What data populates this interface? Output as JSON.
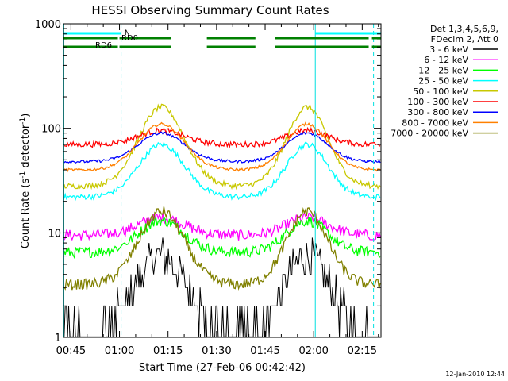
{
  "chart_data": {
    "type": "line",
    "title": "HESSI Observing Summary Count Rates",
    "xlabel": "Start Time (27-Feb-06 00:42:42)",
    "ylabel_prefix": "Count Rate (s",
    "ylabel_sup1": "-1",
    "ylabel_mid": " detector",
    "ylabel_sup2": "-1",
    "ylabel_suffix": ")",
    "y_scale": "log",
    "ylim": [
      1,
      1000
    ],
    "xlim_min": [
      42.7,
      140.8
    ],
    "x_ticks": [
      {
        "m": 45,
        "label": "00:45"
      },
      {
        "m": 60,
        "label": "01:00"
      },
      {
        "m": 75,
        "label": "01:15"
      },
      {
        "m": 90,
        "label": "01:30"
      },
      {
        "m": 105,
        "label": "01:45"
      },
      {
        "m": 120,
        "label": "02:00"
      },
      {
        "m": 135,
        "label": "02:15"
      }
    ],
    "y_ticks": [
      {
        "v": 1,
        "label": "1"
      },
      {
        "v": 10,
        "label": "10"
      },
      {
        "v": 100,
        "label": "100"
      },
      {
        "v": 1000,
        "label": "1000"
      }
    ],
    "legend_header": [
      "Det 1,3,4,5,6,9,",
      "FDecim 2, Att 0"
    ],
    "legend_placement": "right",
    "timestamp": "12-Jan-2010 12:44",
    "markers": {
      "n_label": "N",
      "rd0_label": "RD0",
      "rd6_label": "RD6",
      "night_bars": [
        [
          42.7,
          60.5
        ],
        [
          120.5,
          140.8
        ]
      ],
      "saa_bars": [
        [
          42.7,
          59.5
        ],
        [
          60.0,
          76.0
        ],
        [
          87.0,
          102.0
        ],
        [
          108.0,
          137.0
        ],
        [
          138.0,
          140.8
        ]
      ],
      "v_lines_solid": [
        42.8,
        120.5
      ],
      "v_lines_dashed": [
        60.5,
        138.5
      ]
    },
    "series": [
      {
        "name": "3 - 6 keV",
        "color": "#000000",
        "high": 6,
        "low": 1.4,
        "noise": 0.45
      },
      {
        "name": "6 - 12 keV",
        "color": "#ff00ff",
        "high": 14,
        "low": 9.5,
        "noise": 0.12
      },
      {
        "name": "12 - 25 keV",
        "color": "#00ff00",
        "high": 13,
        "low": 6.5,
        "noise": 0.12
      },
      {
        "name": "25 - 50 keV",
        "color": "#00ffff",
        "high": 70,
        "low": 22,
        "noise": 0.06
      },
      {
        "name": "50 - 100 keV",
        "color": "#c8c800",
        "high": 160,
        "low": 28,
        "noise": 0.06
      },
      {
        "name": "100 - 300 keV",
        "color": "#ff0000",
        "high": 95,
        "low": 70,
        "noise": 0.06
      },
      {
        "name": "300 - 800 keV",
        "color": "#0000ff",
        "high": 90,
        "low": 48,
        "noise": 0.03
      },
      {
        "name": "800 - 7000 keV",
        "color": "#ff8000",
        "high": 110,
        "low": 40,
        "noise": 0.03
      },
      {
        "name": "7000 - 20000 keV",
        "color": "#808000",
        "high": 16,
        "low": 3.2,
        "noise": 0.12
      }
    ]
  }
}
